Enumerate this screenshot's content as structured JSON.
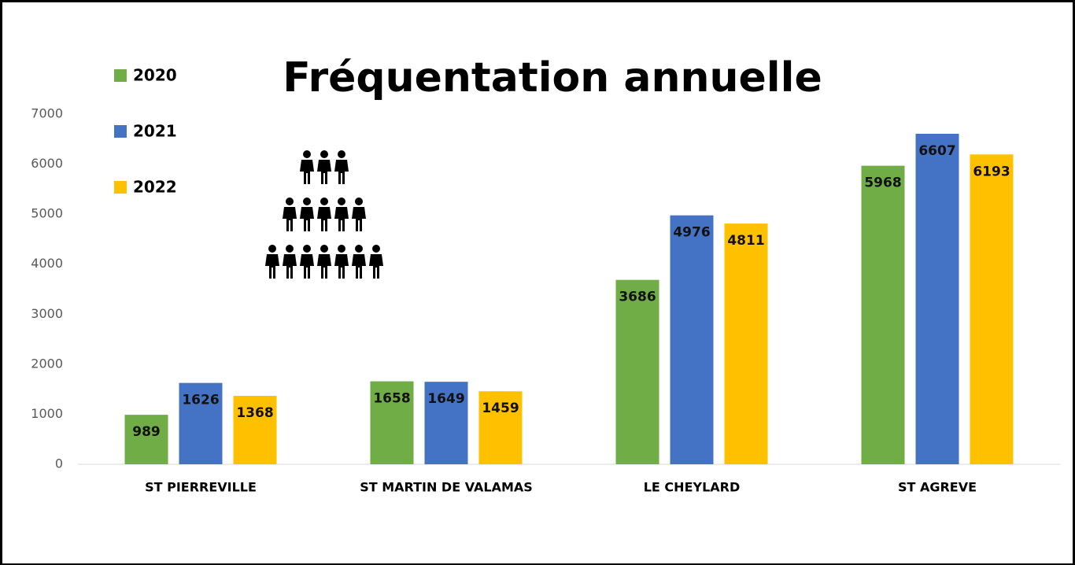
{
  "chart_data": {
    "type": "bar",
    "title": "Fréquentation annuelle",
    "categories": [
      "ST PIERREVILLE",
      "ST MARTIN DE VALAMAS",
      "LE CHEYLARD",
      "ST AGREVE"
    ],
    "series": [
      {
        "name": "2020",
        "color": "#70ad47",
        "values": [
          989,
          1658,
          3686,
          5968
        ]
      },
      {
        "name": "2021",
        "color": "#4472c4",
        "values": [
          1626,
          1649,
          4976,
          6607
        ]
      },
      {
        "name": "2022",
        "color": "#ffc000",
        "values": [
          1368,
          1459,
          4811,
          6193
        ]
      }
    ],
    "ylim": [
      0,
      7000
    ],
    "yticks": [
      0,
      1000,
      2000,
      3000,
      4000,
      5000,
      6000,
      7000
    ],
    "grid": false,
    "legend": "top-left"
  }
}
